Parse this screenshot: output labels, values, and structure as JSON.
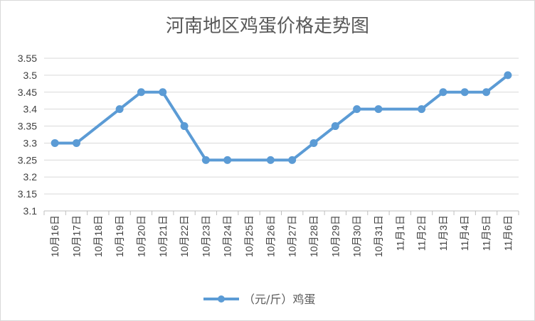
{
  "chart_data": {
    "type": "line",
    "title": "河南地区鸡蛋价格走势图",
    "categories": [
      "10月16日",
      "10月17日",
      "10月18日",
      "10月19日",
      "10月20日",
      "10月21日",
      "10月22日",
      "10月23日",
      "10月24日",
      "10月25日",
      "10月26日",
      "10月27日",
      "10月28日",
      "10月29日",
      "10月30日",
      "10月31日",
      "11月1日",
      "11月2日",
      "11月3日",
      "11月4日",
      "11月5日",
      "11月6日"
    ],
    "series": [
      {
        "name": "（元/斤）鸡蛋",
        "values": [
          3.3,
          3.3,
          null,
          3.4,
          3.45,
          3.45,
          3.35,
          3.25,
          3.25,
          null,
          3.25,
          3.25,
          3.3,
          3.35,
          3.4,
          3.4,
          null,
          3.4,
          3.45,
          3.45,
          3.45,
          3.5
        ],
        "color": "#5b9bd5"
      }
    ],
    "yticks": [
      "3.1",
      "3.15",
      "3.2",
      "3.25",
      "3.3",
      "3.35",
      "3.4",
      "3.45",
      "3.5",
      "3.55"
    ],
    "ylim": [
      3.1,
      3.55
    ],
    "grid": true,
    "legend": "bottom"
  }
}
